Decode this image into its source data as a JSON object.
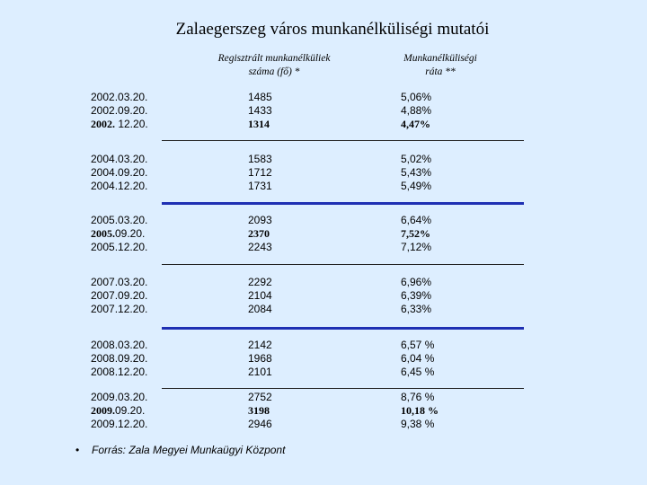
{
  "title": "Zalaegerszeg város munkanélküliségi mutatói",
  "headers": {
    "col1_line1": "Regisztrált munkanélküliek",
    "col1_line2": "száma (fő) *",
    "col2_line1": "Munkanélküliségi",
    "col2_line2": "ráta **"
  },
  "rows": [
    {
      "date": "2002.03.20.",
      "count": "1485",
      "rate": "5,06%",
      "bold": false
    },
    {
      "date": "2002.09.20.",
      "count": "1433",
      "rate": "4,88%",
      "bold": false
    },
    {
      "date": "2002. 12.20.",
      "count": "1314",
      "rate": "4,47%",
      "bold": true
    },
    {
      "date": "2004.03.20.",
      "count": "1583",
      "rate": "5,02%",
      "bold": false
    },
    {
      "date": "2004.09.20.",
      "count": "1712",
      "rate": "5,43%",
      "bold": false
    },
    {
      "date": "2004.12.20.",
      "count": "1731",
      "rate": "5,49%",
      "bold": false
    },
    {
      "date": "2005.03.20.",
      "count": "2093",
      "rate": "6,64%",
      "bold": false
    },
    {
      "date_bold": "2005.",
      "date_rest": "09.20.",
      "count": "2370",
      "rate": "7,52%",
      "bold": true
    },
    {
      "date": "2005.12.20.",
      "count": "2243",
      "rate": "7,12%",
      "bold": false
    },
    {
      "date": "2007.03.20.",
      "count": "2292",
      "rate": "6,96%",
      "bold": false
    },
    {
      "date": "2007.09.20.",
      "count": "2104",
      "rate": "6,39%",
      "bold": false
    },
    {
      "date": "2007.12.20.",
      "count": "2084",
      "rate": "6,33%",
      "bold": false
    },
    {
      "date": "2008.03.20.",
      "count": "2142",
      "rate": "6,57 %",
      "bold": false
    },
    {
      "date": "2008.09.20.",
      "count": "1968",
      "rate": "6,04 %",
      "bold": false
    },
    {
      "date": "2008.12.20.",
      "count": "2101",
      "rate": "6,45 %",
      "bold": false
    },
    {
      "date": "2009.03.20.",
      "count": "2752",
      "rate": "8,76 %",
      "bold": false
    },
    {
      "date_bold": "2009.",
      "date_rest": "09.20.",
      "count": "3198",
      "rate": "10,18 %",
      "bold": true
    },
    {
      "date": "2009.12.20.",
      "count": "2946",
      "rate": "9,38 %",
      "bold": false
    }
  ],
  "source": {
    "bullet": "•",
    "text": "Forrás: Zala Megyei Munkaügyi Központ"
  }
}
